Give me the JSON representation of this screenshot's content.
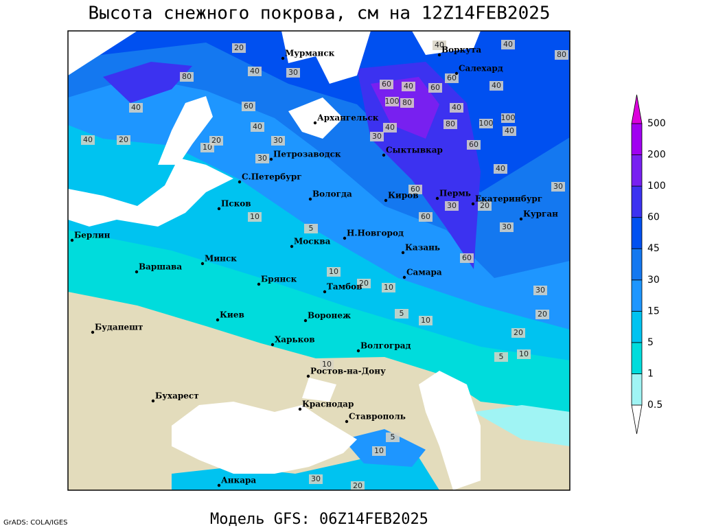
{
  "title": "Высота снежного покрова, см на 12Z14FEB2025",
  "footer": "Модель GFS: 06Z14FEB2025",
  "credit": "GrADS: COLA/IGES",
  "legend": {
    "levels": [
      0.5,
      1,
      5,
      15,
      30,
      45,
      60,
      100,
      200,
      500
    ],
    "colors": [
      "#a0f4f4",
      "#00dcdc",
      "#00c3f0",
      "#1e96ff",
      "#1478f0",
      "#0050f0",
      "#3c32f0",
      "#7820f0",
      "#a000f0",
      "#dc00dc"
    ]
  },
  "cities": [
    "Мурманск",
    "Воркута",
    "Салехард",
    "Архангельск",
    "Петрозаводск",
    "Сыктывкар",
    "С.Петербург",
    "Вологда",
    "Киров",
    "Пермь",
    "Екатеринбург",
    "Курган",
    "Псков",
    "Н.Новгород",
    "Казань",
    "Москва",
    "Берлин",
    "Минск",
    "Варшава",
    "Брянск",
    "Тамбов",
    "Самара",
    "Киев",
    "Воронеж",
    "Будапешт",
    "Харьков",
    "Волгоград",
    "Ростов-на-Дону",
    "Бухарест",
    "Краснодар",
    "Ставрополь",
    "Анкара"
  ],
  "contour_labels": [
    20,
    40,
    30,
    80,
    60,
    40,
    40,
    30,
    10,
    20,
    30,
    20,
    40,
    30,
    40,
    100,
    80,
    60,
    40,
    60,
    60,
    40,
    40,
    80,
    40,
    80,
    100,
    100,
    40,
    40,
    60,
    40,
    30,
    60,
    30,
    20,
    60,
    30,
    60,
    10,
    5,
    10,
    20,
    10,
    30,
    20,
    20,
    10,
    5,
    10,
    5,
    10,
    30,
    20,
    5,
    10
  ]
}
